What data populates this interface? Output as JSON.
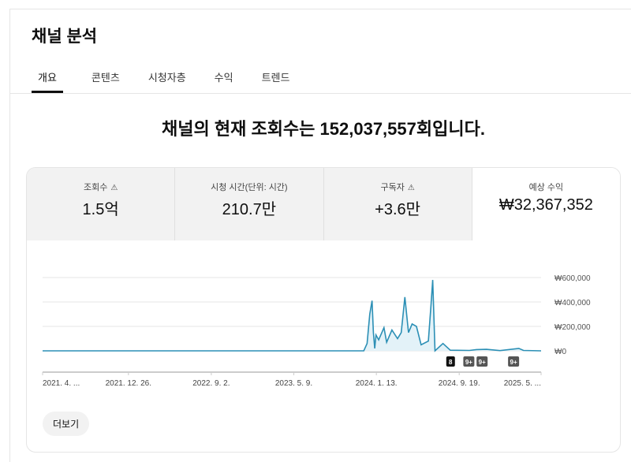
{
  "page": {
    "title": "채널 분석",
    "headline": "채널의 현재 조회수는 152,037,557회입니다."
  },
  "tabs": [
    {
      "label": "개요",
      "active": true
    },
    {
      "label": "콘텐츠"
    },
    {
      "label": "시청자층"
    },
    {
      "label": "수익"
    },
    {
      "label": "트렌드"
    }
  ],
  "metrics": [
    {
      "label": "조회수",
      "value": "1.5억",
      "warning": true
    },
    {
      "label": "시청 시간(단위: 시간)",
      "value": "210.7만",
      "warning": false
    },
    {
      "label": "구독자",
      "value": "+3.6만",
      "warning": true
    },
    {
      "label": "예상 수익",
      "value": "₩32,367,352",
      "warning": false,
      "selected": true
    }
  ],
  "more_label": "더보기",
  "chart_data": {
    "type": "area",
    "ylim": [
      0,
      600000
    ],
    "y_ticks": [
      {
        "v": 0,
        "label": "₩0"
      },
      {
        "v": 200000,
        "label": "₩200,000"
      },
      {
        "v": 400000,
        "label": "₩400,000"
      },
      {
        "v": 600000,
        "label": "₩600,000"
      }
    ],
    "x_range": [
      "2021-04-11",
      "2025-05-24"
    ],
    "x_ticks": [
      {
        "d": "2021-04-11",
        "label": "2021. 4. ..."
      },
      {
        "d": "2021-12-26",
        "label": "2021. 12. 26."
      },
      {
        "d": "2022-09-02",
        "label": "2022. 9. 2."
      },
      {
        "d": "2023-05-09",
        "label": "2023. 5. 9."
      },
      {
        "d": "2024-01-13",
        "label": "2024. 1. 13."
      },
      {
        "d": "2024-09-19",
        "label": "2024. 9. 19."
      },
      {
        "d": "2025-05-24",
        "label": "2025. 5. ..."
      }
    ],
    "color": "#2b8fb5",
    "points": [
      [
        "2021-04-11",
        0
      ],
      [
        "2023-12-06",
        0
      ],
      [
        "2023-12-16",
        60000
      ],
      [
        "2023-12-24",
        300000
      ],
      [
        "2023-12-31",
        410000
      ],
      [
        "2024-01-04",
        150000
      ],
      [
        "2024-01-08",
        20000
      ],
      [
        "2024-01-12",
        130000
      ],
      [
        "2024-01-20",
        90000
      ],
      [
        "2024-02-05",
        190000
      ],
      [
        "2024-02-13",
        70000
      ],
      [
        "2024-02-29",
        170000
      ],
      [
        "2024-03-17",
        100000
      ],
      [
        "2024-03-28",
        150000
      ],
      [
        "2024-04-08",
        440000
      ],
      [
        "2024-04-19",
        150000
      ],
      [
        "2024-04-30",
        220000
      ],
      [
        "2024-05-13",
        200000
      ],
      [
        "2024-05-27",
        50000
      ],
      [
        "2024-06-18",
        80000
      ],
      [
        "2024-06-26",
        380000
      ],
      [
        "2024-07-01",
        580000
      ],
      [
        "2024-07-08",
        0
      ],
      [
        "2024-08-01",
        60000
      ],
      [
        "2024-08-23",
        5000
      ],
      [
        "2024-10-20",
        3000
      ],
      [
        "2024-11-10",
        10000
      ],
      [
        "2024-12-10",
        12000
      ],
      [
        "2025-01-20",
        2000
      ],
      [
        "2025-03-18",
        20000
      ],
      [
        "2025-04-01",
        3000
      ],
      [
        "2025-05-24",
        0
      ]
    ],
    "annotations": [
      {
        "d": "2024-08-24",
        "label": "8"
      },
      {
        "d": "2024-10-18",
        "label": "9+"
      },
      {
        "d": "2024-11-27",
        "label": "9+"
      },
      {
        "d": "2025-03-02",
        "label": "9+"
      }
    ]
  }
}
